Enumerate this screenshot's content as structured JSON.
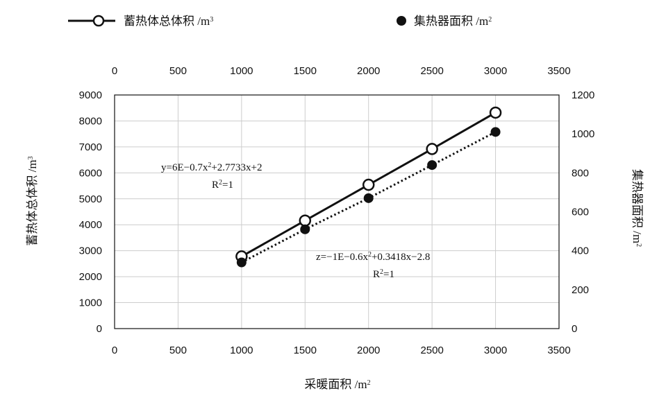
{
  "chart_data": {
    "type": "line",
    "x": [
      1000,
      1500,
      2000,
      2500,
      3000
    ],
    "xlabel": "采暖面积 /m²",
    "xlim": [
      0,
      3500
    ],
    "x_ticks": [
      "0",
      "500",
      "1000",
      "1500",
      "2000",
      "2500",
      "3000",
      "3500"
    ],
    "ylabel_left": "蓄热体总体积 /m³",
    "ylim_left": [
      0,
      9000
    ],
    "y_ticks_left": [
      "0",
      "1000",
      "2000",
      "3000",
      "4000",
      "5000",
      "6000",
      "7000",
      "8000",
      "9000"
    ],
    "ylabel_right": "集热器面积 /m²",
    "ylim_right": [
      0,
      1200
    ],
    "y_ticks_right": [
      "0",
      "200",
      "400",
      "600",
      "800",
      "1000",
      "1200"
    ],
    "grid": true,
    "legend_position": "top",
    "series": [
      {
        "name": "蓄热体总体积 /m³",
        "axis": "left",
        "style": "solid-open-circle",
        "values": [
          2780,
          4160,
          5540,
          6920,
          8320
        ],
        "equation": "y=6E−0.7x²+2.7733x+2",
        "r2": "R²=1"
      },
      {
        "name": "集热器面积 /m²",
        "axis": "right",
        "style": "dotted-filled-circle",
        "values": [
          340,
          510,
          670,
          840,
          1010
        ],
        "equation": "z=−1E−0.6x²+0.3418x−2.8",
        "r2": "R²=1"
      }
    ]
  },
  "colors": {
    "line": "#111111",
    "grid": "#cccccc"
  }
}
